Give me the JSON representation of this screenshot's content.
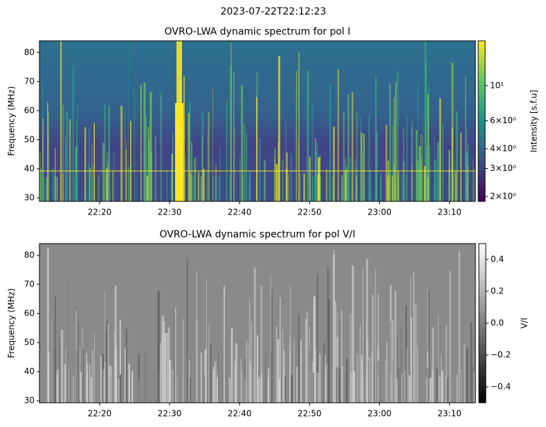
{
  "title": "2023-07-22T22:12:23",
  "chart_data": [
    {
      "type": "spectrogram",
      "title": "OVRO-LWA dynamic spectrum for pol I",
      "ylabel": "Frequency (MHz)",
      "xlim": [
        1331.4,
        1393.7
      ],
      "xticks": [
        {
          "value": 1340,
          "label": "22:20"
        },
        {
          "value": 1350,
          "label": "22:30"
        },
        {
          "value": 1360,
          "label": "22:40"
        },
        {
          "value": 1370,
          "label": "22:50"
        },
        {
          "value": 1380,
          "label": "23:00"
        },
        {
          "value": 1390,
          "label": "23:10"
        }
      ],
      "ylim": [
        28.8,
        84
      ],
      "yticks": [
        30,
        40,
        50,
        60,
        70,
        80
      ],
      "colorbar": {
        "label": "Intensity [s.f.u]",
        "colormap": "viridis",
        "scale": "log",
        "lim": [
          1.86,
          19.2
        ],
        "ticks": [
          {
            "value": 2,
            "label": "2×10⁰"
          },
          {
            "value": 3,
            "label": "3×10⁰"
          },
          {
            "value": 4,
            "label": "4×10⁰"
          },
          {
            "value": 6,
            "label": "6×10⁰"
          },
          {
            "value": 10,
            "label": "10¹"
          }
        ]
      }
    },
    {
      "type": "spectrogram",
      "title": "OVRO-LWA dynamic spectrum for pol V/I",
      "ylabel": "Frequency (MHz)",
      "xlim": [
        1331.4,
        1393.7
      ],
      "xticks": [
        {
          "value": 1340,
          "label": "22:20"
        },
        {
          "value": 1350,
          "label": "22:30"
        },
        {
          "value": 1360,
          "label": "22:40"
        },
        {
          "value": 1370,
          "label": "22:50"
        },
        {
          "value": 1380,
          "label": "23:00"
        },
        {
          "value": 1390,
          "label": "23:10"
        }
      ],
      "ylim": [
        29.3,
        84
      ],
      "yticks": [
        30,
        40,
        50,
        60,
        70,
        80
      ],
      "colorbar": {
        "label": "V/I",
        "colormap": "gray",
        "scale": "linear",
        "lim": [
          -0.5,
          0.5
        ],
        "ticks": [
          {
            "value": -0.4,
            "label": "−0.4"
          },
          {
            "value": -0.2,
            "label": "−0.2"
          },
          {
            "value": 0,
            "label": "0.0"
          },
          0.2,
          0.4
        ]
      }
    }
  ]
}
